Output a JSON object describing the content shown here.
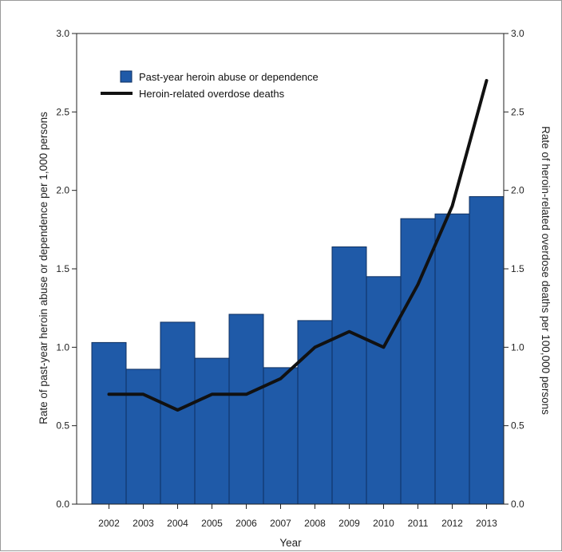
{
  "chart_data": {
    "type": "bar",
    "categories": [
      "2002",
      "2003",
      "2004",
      "2005",
      "2006",
      "2007",
      "2008",
      "2009",
      "2010",
      "2011",
      "2012",
      "2013"
    ],
    "series": [
      {
        "name": "Past-year heroin abuse or dependence",
        "type": "bar",
        "axis": "left",
        "color": "#1f5aa8",
        "values": [
          1.03,
          0.86,
          1.16,
          0.93,
          1.21,
          0.87,
          1.17,
          1.64,
          1.45,
          1.82,
          1.85,
          1.96
        ]
      },
      {
        "name": "Heroin-related overdose deaths",
        "type": "line",
        "axis": "right",
        "color": "#111111",
        "values": [
          0.7,
          0.7,
          0.6,
          0.7,
          0.7,
          0.8,
          1.0,
          1.1,
          1.0,
          1.4,
          1.9,
          2.7
        ]
      }
    ],
    "xlabel": "Year",
    "ylabel": "Rate of past-year heroin abuse or dependence per 1,000 persons",
    "y2label": "Rate of heroin-related overdose deaths per 100,000 persons",
    "ylim": [
      0,
      3.0
    ],
    "y2lim": [
      0,
      3.0
    ],
    "yticks": [
      "0.0",
      "0.5",
      "1.0",
      "1.5",
      "2.0",
      "2.5",
      "3.0"
    ],
    "y2ticks": [
      "0.0",
      "0.5",
      "1.0",
      "1.5",
      "2.0",
      "2.5",
      "3.0"
    ],
    "grid": false,
    "legend_position": "top-left"
  }
}
